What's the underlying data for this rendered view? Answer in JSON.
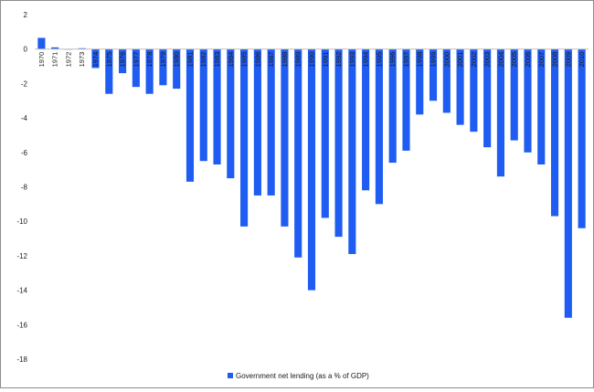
{
  "chart_data": {
    "type": "bar",
    "title": "",
    "xlabel": "",
    "ylabel": "",
    "ylim": [
      -18,
      2
    ],
    "yticks": [
      2,
      0,
      -2,
      -4,
      -6,
      -8,
      -10,
      -12,
      -14,
      -16,
      -18
    ],
    "grid": false,
    "legend_position": "bottom",
    "bar_color": "#1f5cf2",
    "categories": [
      "1970",
      "1971",
      "1972",
      "1973",
      "1974",
      "1975",
      "1976",
      "1977",
      "1978",
      "1979",
      "1980",
      "1981",
      "1982",
      "1983",
      "1984",
      "1985",
      "1986",
      "1987",
      "1988",
      "1989",
      "1990",
      "1991",
      "1992",
      "1993",
      "1994",
      "1995",
      "1996",
      "1997",
      "1998",
      "1999",
      "2000",
      "2001",
      "2002",
      "2003",
      "2004",
      "2005",
      "2006",
      "2007",
      "2008",
      "2009",
      "2010"
    ],
    "series": [
      {
        "name": "Government net lending (as a % of GDP)",
        "values": [
          0.65,
          0.1,
          0.0,
          0.05,
          -1.1,
          -2.6,
          -1.4,
          -2.2,
          -2.6,
          -2.1,
          -2.3,
          -7.7,
          -6.5,
          -6.7,
          -7.5,
          -10.3,
          -8.5,
          -8.5,
          -10.3,
          -12.1,
          -14.0,
          -9.8,
          -10.9,
          -11.9,
          -8.2,
          -9.0,
          -6.6,
          -5.9,
          -3.8,
          -3.0,
          -3.7,
          -4.4,
          -4.8,
          -5.7,
          -7.4,
          -5.3,
          -6.0,
          -6.7,
          -9.7,
          -15.6,
          -10.4
        ]
      }
    ]
  }
}
